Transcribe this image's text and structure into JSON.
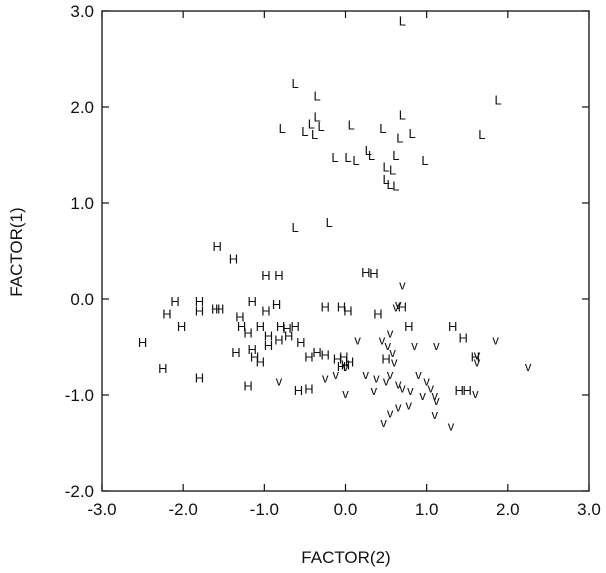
{
  "chart_data": {
    "type": "scatter",
    "xlabel": "FACTOR(2)",
    "ylabel": "FACTOR(1)",
    "xlim": [
      -3.0,
      3.0
    ],
    "ylim": [
      -2.0,
      3.0
    ],
    "xticks": [
      "-3.0",
      "-2.0",
      "-1.0",
      "0.0",
      "1.0",
      "2.0",
      "3.0"
    ],
    "xtick_values": [
      -3,
      -2,
      -1,
      0,
      1,
      2,
      3
    ],
    "yticks": [
      "-2.0",
      "-1.0",
      "0.0",
      "1.0",
      "2.0",
      "3.0"
    ],
    "ytick_values": [
      -2,
      -1,
      0,
      1,
      2,
      3
    ],
    "grid": false,
    "series": [
      {
        "marker": "L",
        "points": [
          [
            0.7,
            2.9
          ],
          [
            -0.62,
            2.25
          ],
          [
            -0.35,
            2.12
          ],
          [
            1.88,
            2.08
          ],
          [
            0.7,
            1.92
          ],
          [
            -0.42,
            1.83
          ],
          [
            -0.35,
            1.9
          ],
          [
            -0.3,
            1.8
          ],
          [
            -0.78,
            1.78
          ],
          [
            -0.5,
            1.75
          ],
          [
            -0.38,
            1.72
          ],
          [
            0.07,
            1.82
          ],
          [
            0.46,
            1.78
          ],
          [
            0.82,
            1.73
          ],
          [
            0.67,
            1.68
          ],
          [
            1.68,
            1.72
          ],
          [
            -0.13,
            1.48
          ],
          [
            0.03,
            1.48
          ],
          [
            0.13,
            1.45
          ],
          [
            0.28,
            1.55
          ],
          [
            0.32,
            1.5
          ],
          [
            0.62,
            1.5
          ],
          [
            0.98,
            1.45
          ],
          [
            0.5,
            1.38
          ],
          [
            0.58,
            1.35
          ],
          [
            0.5,
            1.25
          ],
          [
            0.55,
            1.2
          ],
          [
            0.62,
            1.18
          ],
          [
            -0.62,
            0.75
          ],
          [
            -0.2,
            0.8
          ]
        ]
      },
      {
        "marker": "H",
        "points": [
          [
            -1.58,
            0.55
          ],
          [
            -1.38,
            0.42
          ],
          [
            -0.98,
            0.25
          ],
          [
            -0.82,
            0.25
          ],
          [
            0.25,
            0.28
          ],
          [
            0.35,
            0.27
          ],
          [
            -2.1,
            -0.02
          ],
          [
            -2.2,
            -0.15
          ],
          [
            -1.8,
            -0.02
          ],
          [
            -1.8,
            -0.12
          ],
          [
            -1.6,
            -0.1
          ],
          [
            -1.55,
            -0.1
          ],
          [
            -1.15,
            -0.02
          ],
          [
            -0.85,
            -0.05
          ],
          [
            -0.98,
            -0.12
          ],
          [
            -0.25,
            -0.08
          ],
          [
            -0.05,
            -0.08
          ],
          [
            0.03,
            -0.12
          ],
          [
            -2.02,
            -0.28
          ],
          [
            -1.3,
            -0.18
          ],
          [
            -1.28,
            -0.28
          ],
          [
            -1.05,
            -0.28
          ],
          [
            -0.8,
            -0.28
          ],
          [
            -0.72,
            -0.3
          ],
          [
            -0.62,
            -0.28
          ],
          [
            -1.2,
            -0.35
          ],
          [
            -0.95,
            -0.38
          ],
          [
            -0.82,
            -0.42
          ],
          [
            -0.7,
            -0.38
          ],
          [
            0.4,
            -0.15
          ],
          [
            0.7,
            -0.08
          ],
          [
            0.78,
            -0.28
          ],
          [
            1.32,
            -0.28
          ],
          [
            1.45,
            -0.4
          ],
          [
            -2.5,
            -0.45
          ],
          [
            -1.35,
            -0.55
          ],
          [
            -1.15,
            -0.52
          ],
          [
            -0.95,
            -0.48
          ],
          [
            -0.55,
            -0.45
          ],
          [
            -0.45,
            -0.6
          ],
          [
            -0.35,
            -0.55
          ],
          [
            -0.25,
            -0.58
          ],
          [
            -0.1,
            -0.62
          ],
          [
            -0.02,
            -0.6
          ],
          [
            0.0,
            -0.68
          ],
          [
            -1.12,
            -0.6
          ],
          [
            -1.05,
            -0.65
          ],
          [
            -0.05,
            -0.7
          ],
          [
            0.05,
            -0.65
          ],
          [
            -2.25,
            -0.72
          ],
          [
            -1.8,
            -0.82
          ],
          [
            -1.2,
            -0.9
          ],
          [
            -0.58,
            -0.95
          ],
          [
            -0.45,
            -0.93
          ],
          [
            0.5,
            -0.62
          ],
          [
            1.4,
            -0.95
          ],
          [
            1.5,
            -0.95
          ],
          [
            1.6,
            -0.6
          ]
        ]
      },
      {
        "marker": "v",
        "points": [
          [
            0.7,
            0.15
          ],
          [
            0.65,
            -0.05
          ],
          [
            0.62,
            -0.08
          ],
          [
            0.55,
            -0.35
          ],
          [
            0.45,
            -0.42
          ],
          [
            0.52,
            -0.48
          ],
          [
            0.58,
            -0.55
          ],
          [
            0.15,
            -0.42
          ],
          [
            0.0,
            -0.7
          ],
          [
            -0.82,
            -0.85
          ],
          [
            -0.25,
            -0.82
          ],
          [
            0.0,
            -0.98
          ],
          [
            0.25,
            -0.78
          ],
          [
            0.38,
            -0.82
          ],
          [
            0.35,
            -0.95
          ],
          [
            0.5,
            -0.85
          ],
          [
            0.6,
            -0.65
          ],
          [
            0.55,
            -0.78
          ],
          [
            0.65,
            -0.88
          ],
          [
            0.7,
            -0.92
          ],
          [
            0.85,
            -0.48
          ],
          [
            0.8,
            -0.95
          ],
          [
            0.9,
            -0.78
          ],
          [
            1.0,
            -0.85
          ],
          [
            1.05,
            -0.92
          ],
          [
            1.1,
            -1.0
          ],
          [
            1.12,
            -1.05
          ],
          [
            0.95,
            -1.0
          ],
          [
            0.78,
            -1.1
          ],
          [
            0.65,
            -1.12
          ],
          [
            0.55,
            -1.18
          ],
          [
            0.47,
            -1.28
          ],
          [
            1.1,
            -1.2
          ],
          [
            1.3,
            -1.32
          ],
          [
            1.12,
            -0.48
          ],
          [
            1.62,
            -0.58
          ],
          [
            1.62,
            -0.65
          ],
          [
            1.85,
            -0.42
          ],
          [
            2.25,
            -0.7
          ],
          [
            1.6,
            -0.98
          ],
          [
            -0.12,
            -0.78
          ]
        ]
      }
    ]
  }
}
